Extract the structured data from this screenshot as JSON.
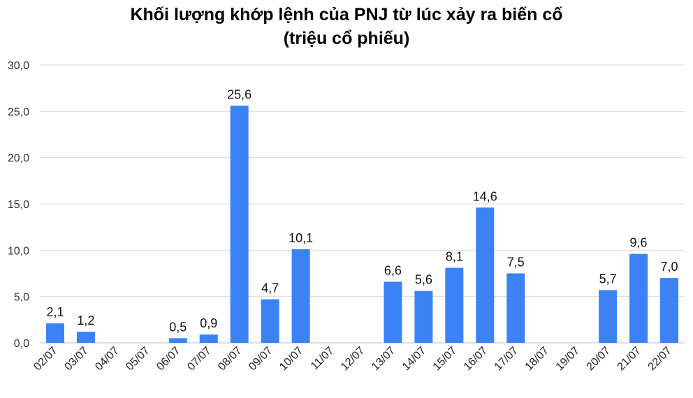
{
  "chart_data": {
    "type": "bar",
    "title_line1": "Khối lượng khớp lệnh của PNJ từ lúc xảy ra biến cố",
    "title_line2": "(triệu cổ phiếu)",
    "xlabel": "",
    "ylabel": "",
    "ylim": [
      0,
      30
    ],
    "y_ticks": [
      "0,0",
      "5,0",
      "10,0",
      "15,0",
      "20,0",
      "25,0",
      "30,0"
    ],
    "grid": true,
    "bar_color": "#3b82f6",
    "categories": [
      "02/07",
      "03/07",
      "04/07",
      "05/07",
      "06/07",
      "07/07",
      "08/07",
      "09/07",
      "10/07",
      "11/07",
      "12/07",
      "13/07",
      "14/07",
      "15/07",
      "16/07",
      "17/07",
      "18/07",
      "19/07",
      "20/07",
      "21/07",
      "22/07"
    ],
    "values": [
      2.1,
      1.2,
      null,
      null,
      0.5,
      0.9,
      25.6,
      4.7,
      10.1,
      null,
      null,
      6.6,
      5.6,
      8.1,
      14.6,
      7.5,
      null,
      null,
      5.7,
      9.6,
      7.0
    ],
    "labels": [
      "2,1",
      "1,2",
      "",
      "",
      "0,5",
      "0,9",
      "25,6",
      "4,7",
      "10,1",
      "",
      "",
      "6,6",
      "5,6",
      "8,1",
      "14,6",
      "7,5",
      "",
      "",
      "5,7",
      "9,6",
      "7,0"
    ]
  }
}
